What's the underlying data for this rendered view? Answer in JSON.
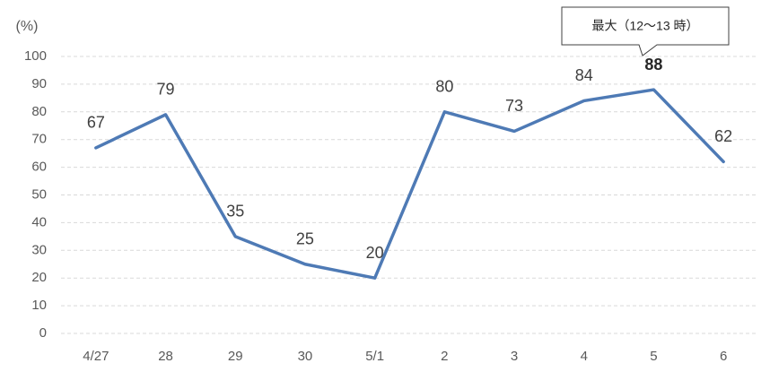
{
  "chart_data": {
    "type": "line",
    "y_axis_label": "(%)",
    "annotation": "最大（12～13 時）",
    "emphasized_category": "5",
    "categories": [
      "4/27",
      "28",
      "29",
      "30",
      "5/1",
      "2",
      "3",
      "4",
      "5",
      "6"
    ],
    "values": [
      67,
      79,
      35,
      25,
      20,
      80,
      73,
      84,
      88,
      62
    ],
    "color": "#4e7ab5",
    "ylim": [
      0,
      100
    ],
    "yticks": [
      0,
      10,
      20,
      30,
      40,
      50,
      60,
      70,
      80,
      90,
      100
    ],
    "grid": true
  }
}
